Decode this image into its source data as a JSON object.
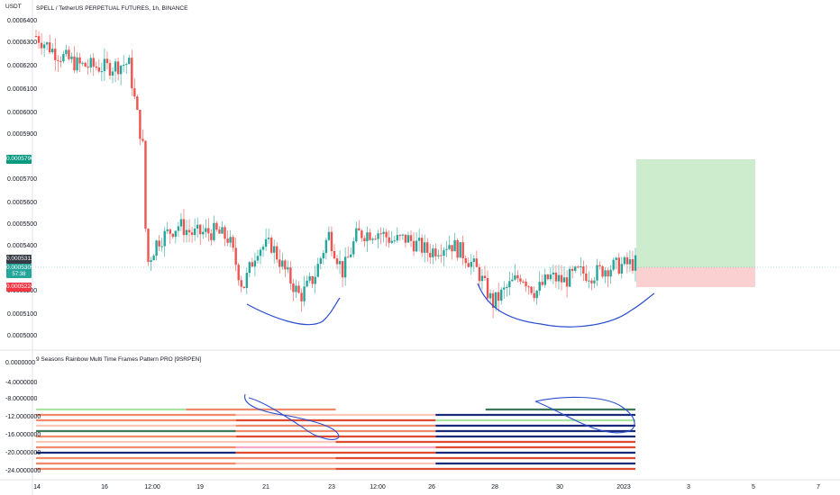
{
  "header": {
    "currency": "USDT",
    "title": "SPELL / TetherUS PERPETUAL FUTURES, 1h, BINANCE"
  },
  "indicator": {
    "title": "9 Seasons Rainbow Multi Time Frames Pattern PRO [9SRPEN]"
  },
  "price_axis": {
    "labels": [
      "0.0006400",
      "0.0006300",
      "0.0006200",
      "0.0006100",
      "0.0006000",
      "0.0005900",
      "0.0005700",
      "0.0005600",
      "0.0005500",
      "0.0005400",
      "0.0005200",
      "0.0005100",
      "0.0005000"
    ]
  },
  "price_tags": {
    "target": "0.0005790",
    "current": "0.0005311",
    "secondary": "0.0005309",
    "countdown": "57:38",
    "stop": "0.0005224"
  },
  "indicator_axis": {
    "labels": [
      "0.0000000",
      "-4.0000000",
      "-8.0000000",
      "-12.0000000",
      "-16.0000000",
      "-20.0000000",
      "-24.0000000"
    ]
  },
  "time_axis": {
    "labels": [
      "14",
      "16",
      "12:00",
      "19",
      "21",
      "23",
      "12:00",
      "26",
      "28",
      "30",
      "2023",
      "3",
      "5",
      "7"
    ]
  },
  "colors": {
    "up": "#26a69a",
    "down": "#ef5350",
    "target_tag": "#089981",
    "stop_tag": "#f23645",
    "current_tag": "#363a45",
    "drawing": "#2a4dd0",
    "profit_zone": "#cdeccd",
    "loss_zone": "#fbd0d0"
  },
  "chart_data": {
    "type": "candlestick",
    "title": "SPELL / TetherUS PERPETUAL FUTURES, 1h, BINANCE",
    "ylim": [
      0.000496,
      0.000642
    ],
    "close_path": [
      [
        0,
        0.000632
      ],
      [
        0.03,
        0.000624
      ],
      [
        0.06,
        0.000619
      ],
      [
        0.1,
        0.000618
      ],
      [
        0.13,
        0.00062
      ],
      [
        0.14,
        0.0006
      ],
      [
        0.15,
        0.000582
      ],
      [
        0.155,
        0.00053
      ],
      [
        0.17,
        0.000541
      ],
      [
        0.2,
        0.000548
      ],
      [
        0.22,
        0.000544
      ],
      [
        0.25,
        0.000545
      ],
      [
        0.27,
        0.000542
      ],
      [
        0.29,
        0.00052
      ],
      [
        0.31,
        0.000538
      ],
      [
        0.33,
        0.000539
      ],
      [
        0.35,
        0.000527
      ],
      [
        0.37,
        0.000516
      ],
      [
        0.39,
        0.000525
      ],
      [
        0.41,
        0.000544
      ],
      [
        0.43,
        0.000527
      ],
      [
        0.45,
        0.000544
      ],
      [
        0.48,
        0.000545
      ],
      [
        0.5,
        0.000541
      ],
      [
        0.52,
        0.000542
      ],
      [
        0.55,
        0.000536
      ],
      [
        0.58,
        0.00054
      ],
      [
        0.6,
        0.000535
      ],
      [
        0.62,
        0.000527
      ],
      [
        0.64,
        0.000513
      ],
      [
        0.66,
        0.00052
      ],
      [
        0.68,
        0.000526
      ],
      [
        0.7,
        0.000518
      ],
      [
        0.72,
        0.000525
      ],
      [
        0.74,
        0.000523
      ],
      [
        0.76,
        0.000527
      ],
      [
        0.78,
        0.000526
      ],
      [
        0.8,
        0.000529
      ],
      [
        0.82,
        0.00053
      ],
      [
        0.84,
        0.0005311
      ]
    ],
    "position": {
      "entry": 0.0005311,
      "target": 0.000579,
      "stop": 0.0005224
    }
  }
}
